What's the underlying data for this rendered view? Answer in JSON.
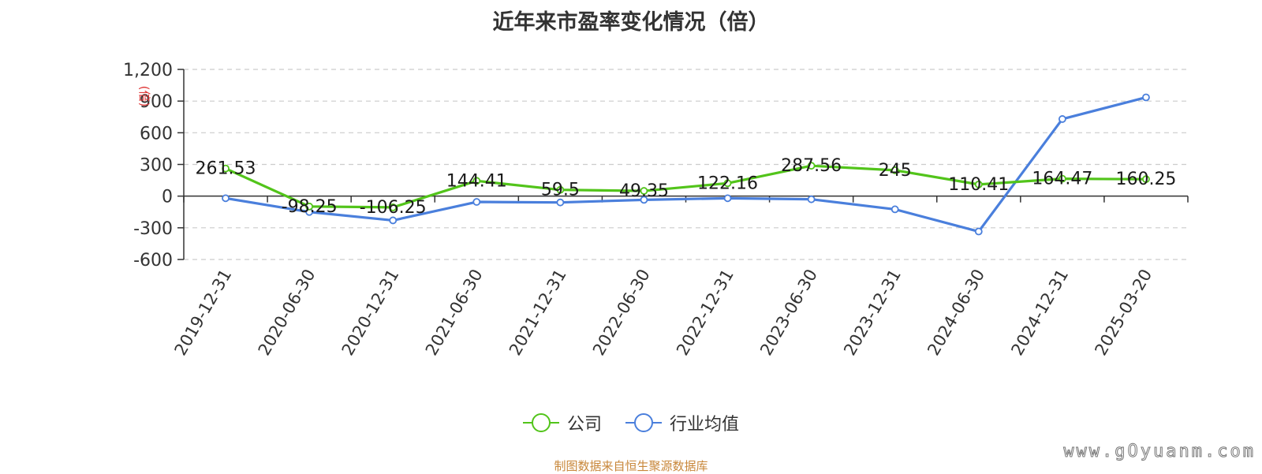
{
  "chart_data": {
    "type": "line",
    "title": "近年来市盈率变化情况（倍）",
    "ylabel": "(倍)",
    "categories": [
      "2019-12-31",
      "2020-06-30",
      "2020-12-31",
      "2021-06-30",
      "2021-12-31",
      "2022-06-30",
      "2022-12-31",
      "2023-06-30",
      "2023-12-31",
      "2024-06-30",
      "2024-12-31",
      "2025-03-20"
    ],
    "ylim": [
      -600,
      1200
    ],
    "yticks": [
      1200,
      900,
      600,
      300,
      0,
      -300,
      -600
    ],
    "ytick_labels": [
      "1,200",
      "900",
      "600",
      "300",
      "0",
      "-300",
      "-600"
    ],
    "grid": true,
    "legend_position": "bottom-center",
    "series": [
      {
        "name": "公司",
        "color": "#52c41a",
        "values": [
          261.53,
          -98.25,
          -106.25,
          144.41,
          59.5,
          49.35,
          122.16,
          287.56,
          245,
          110.41,
          164.47,
          160.25
        ],
        "labels": [
          "261.53",
          "-98.25",
          "-106.25",
          "144.41",
          "59.5",
          "49.35",
          "122.16",
          "287.56",
          "245",
          "110.41",
          "164.47",
          "160.25"
        ]
      },
      {
        "name": "行业均值",
        "color": "#4a7fdc",
        "values": [
          -20,
          -150,
          -230,
          -55,
          -60,
          -35,
          -20,
          -30,
          -125,
          -335,
          730,
          935
        ]
      }
    ]
  },
  "legend": {
    "company": "公司",
    "industry": "行业均值"
  },
  "source": "制图数据来自恒生聚源数据库",
  "watermark": "www.gOyuanm.com"
}
